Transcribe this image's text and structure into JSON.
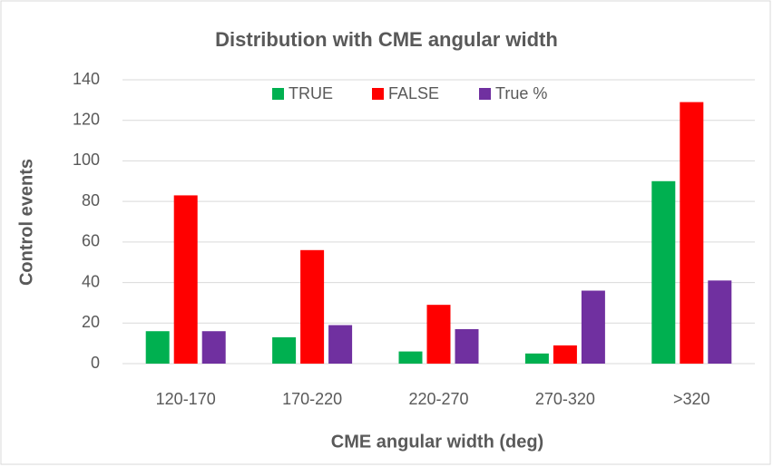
{
  "chart_data": {
    "type": "bar",
    "title": "Distribution with CME angular width",
    "xlabel": "CME angular width (deg)",
    "ylabel": "Control events",
    "categories": [
      "120-170",
      "170-220",
      "220-270",
      "270-320",
      ">320"
    ],
    "series": [
      {
        "name": "TRUE",
        "color": "#00b050",
        "values": [
          16,
          13,
          6,
          5,
          90
        ]
      },
      {
        "name": "FALSE",
        "color": "#ff0000",
        "values": [
          83,
          56,
          29,
          9,
          129
        ]
      },
      {
        "name": "True %",
        "color": "#7030a0",
        "values": [
          16,
          19,
          17,
          36,
          41
        ]
      }
    ],
    "ylim": [
      0,
      140
    ],
    "yticks": [
      0,
      20,
      40,
      60,
      80,
      100,
      120,
      140
    ],
    "grid": true,
    "legend": "top"
  }
}
